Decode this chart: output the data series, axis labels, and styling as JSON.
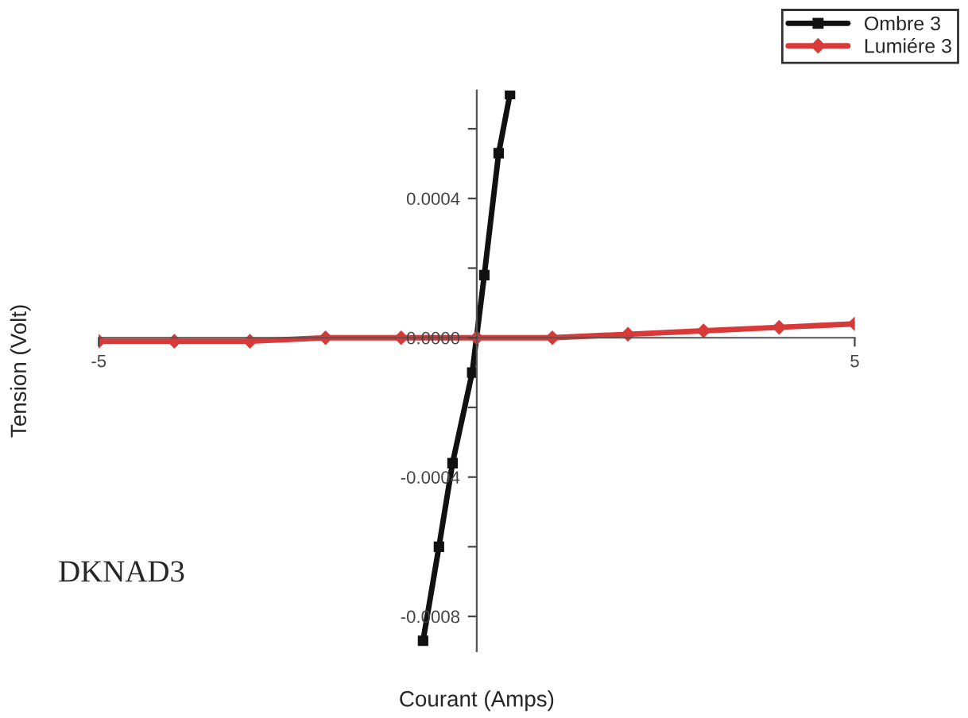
{
  "chart_data": {
    "type": "line",
    "xlabel": "Courant (Amps)",
    "ylabel": "Tension (Volt)",
    "xlim": [
      -5,
      5
    ],
    "xticks": [
      -5,
      5
    ],
    "ylim": [
      -0.0009,
      0.00071
    ],
    "yticks": [
      {
        "value": -0.0008,
        "label": "-0.0008"
      },
      {
        "value": -0.0006,
        "label": null
      },
      {
        "value": -0.0004,
        "label": "-0.0004"
      },
      {
        "value": -0.0002,
        "label": null
      },
      {
        "value": 0,
        "label": "0.0000"
      },
      {
        "value": 0.0002,
        "label": null
      },
      {
        "value": 0.0004,
        "label": "0.0004"
      },
      {
        "value": 0.0006,
        "label": null
      }
    ],
    "series": [
      {
        "name": "Ombre 3",
        "color": "#111111",
        "marker": "square",
        "x": [
          -0.71,
          -0.5,
          -0.32,
          -0.06,
          0.1,
          0.29,
          0.44
        ],
        "values": [
          -0.00087,
          -0.0006,
          -0.00036,
          -0.0001,
          0.00018,
          0.00053,
          0.0007
        ]
      },
      {
        "name": "Lumiére 3",
        "color": "#d83a3a",
        "marker": "diamond",
        "x": [
          -5,
          -4,
          -3,
          -2,
          -1,
          0,
          1,
          2,
          3,
          4,
          5
        ],
        "values": [
          -1e-05,
          -1e-05,
          -1e-05,
          0,
          0,
          0,
          0,
          1e-05,
          2e-05,
          3e-05,
          4e-05
        ]
      }
    ],
    "legend": "top right",
    "grid": false,
    "line_style": "solid",
    "annotations": [
      "DKNAD3"
    ]
  }
}
